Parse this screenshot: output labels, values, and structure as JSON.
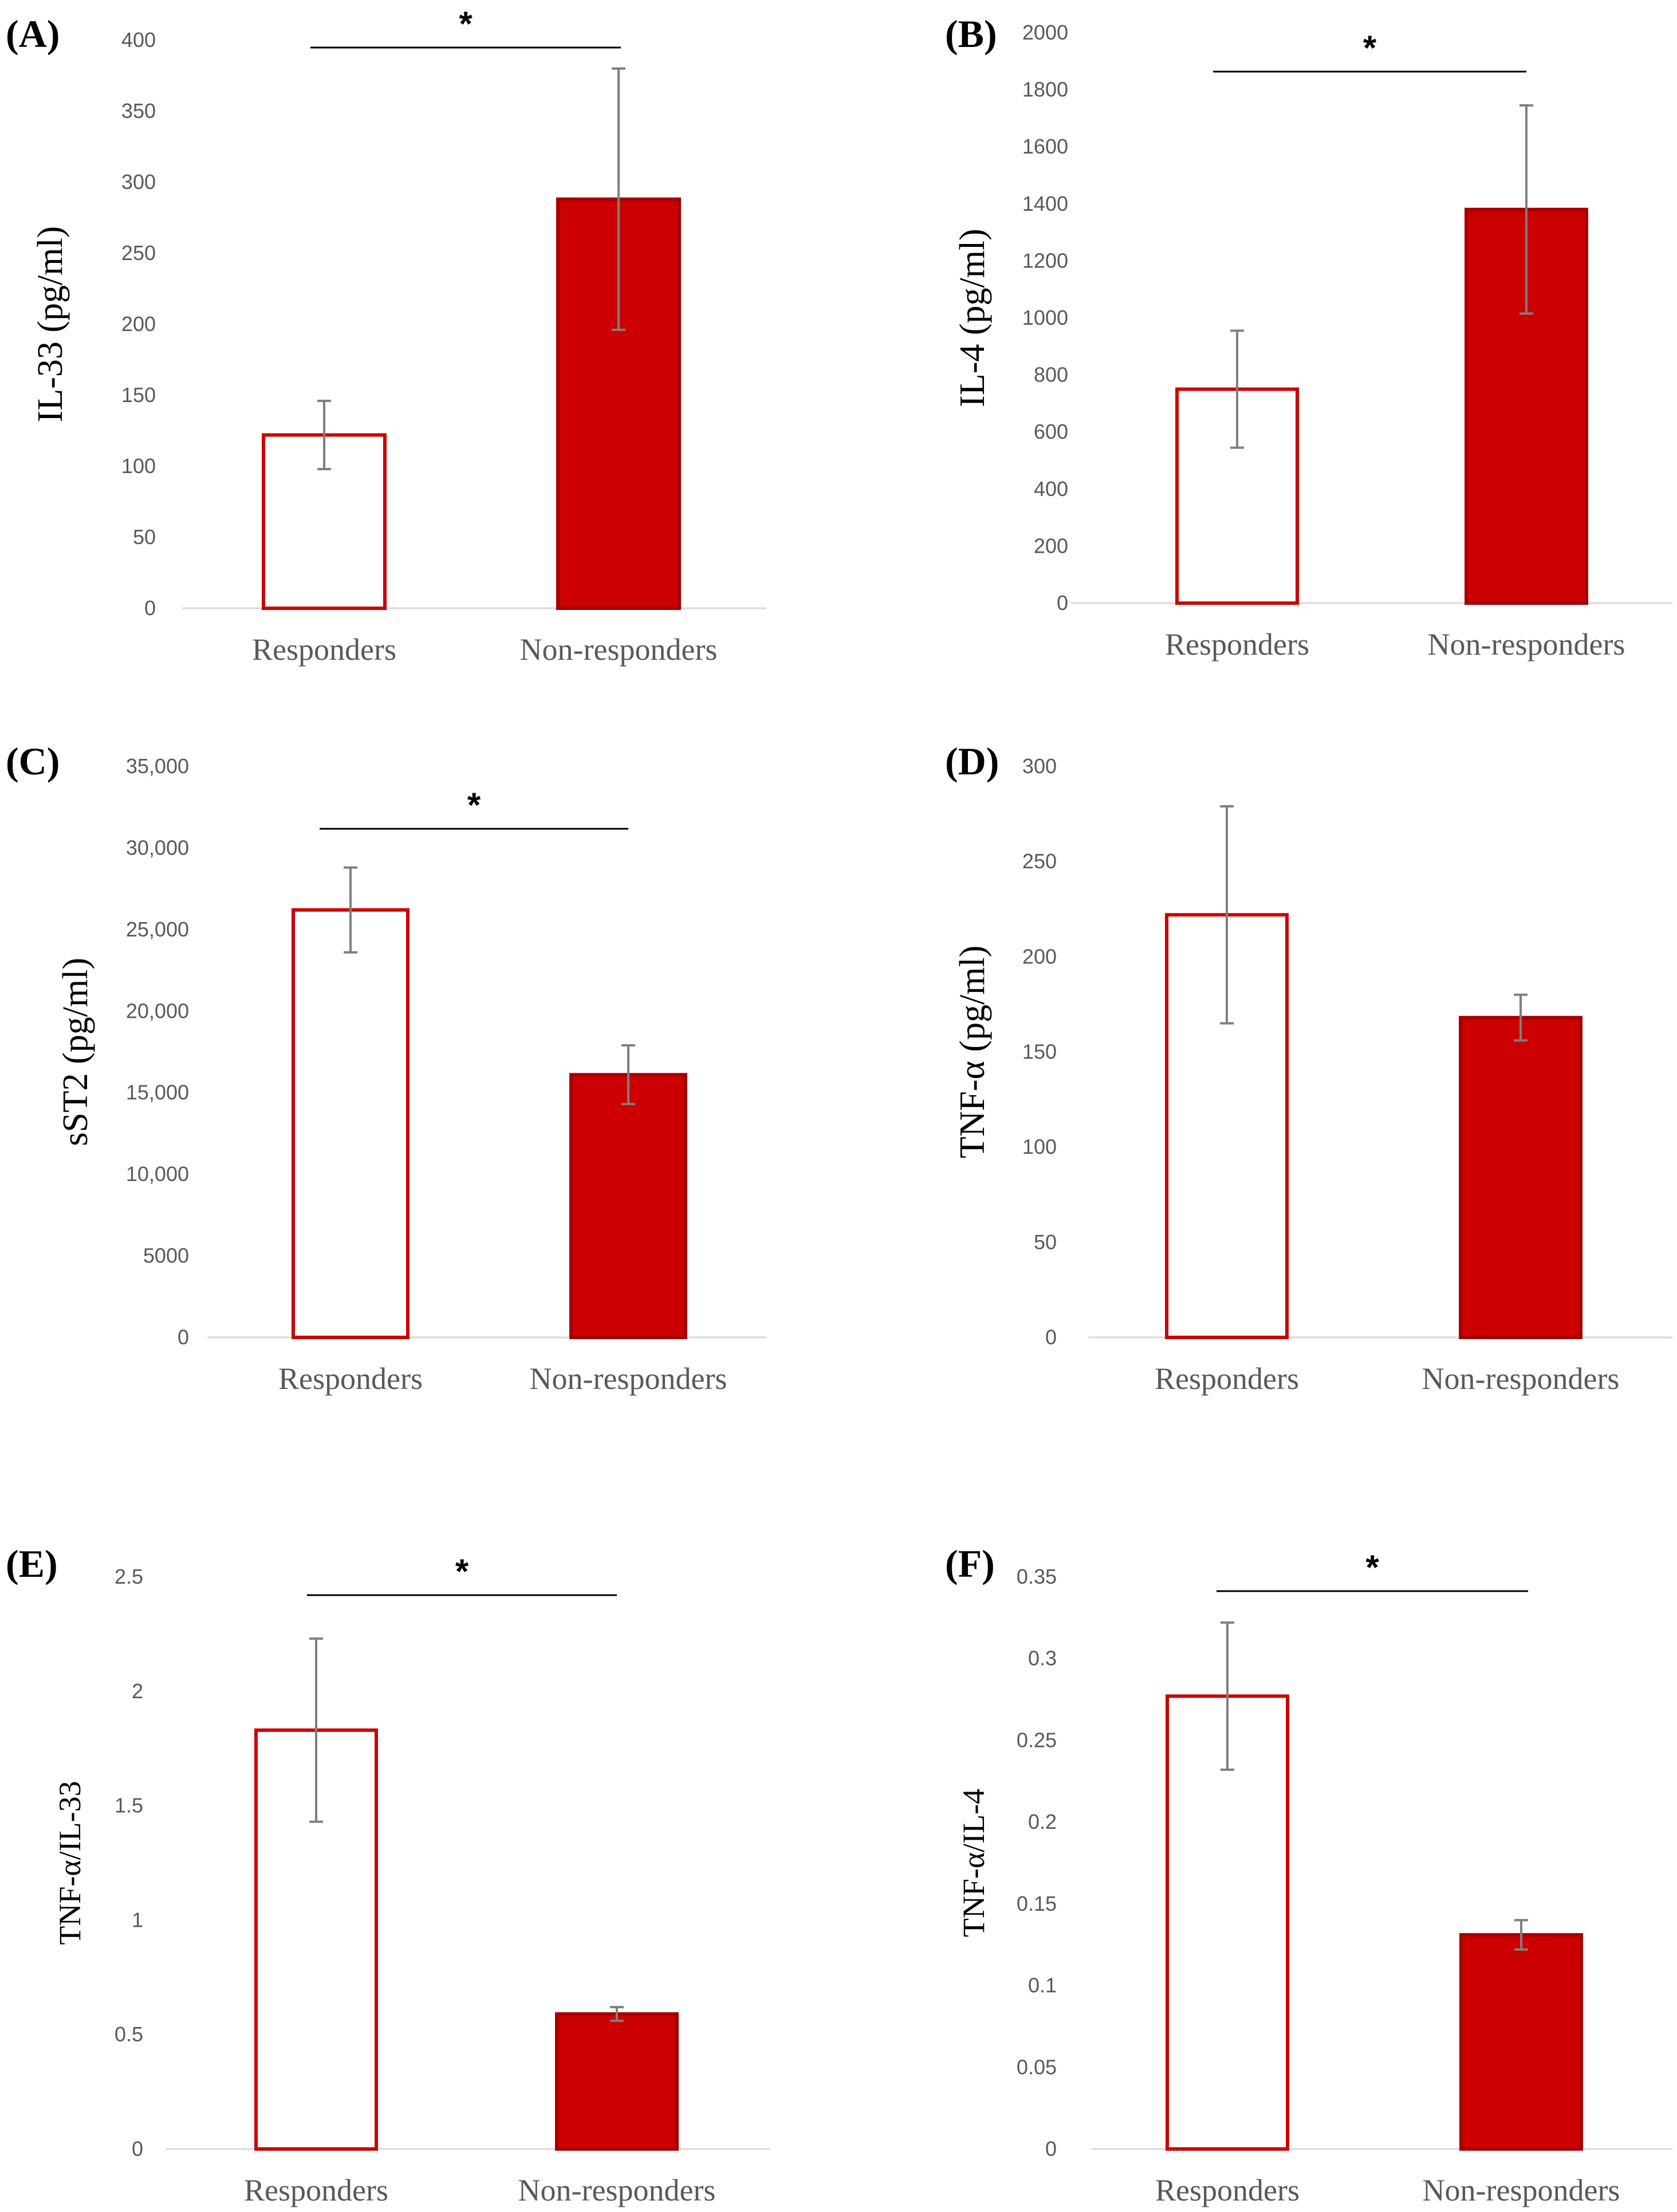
{
  "figure": {
    "style": {
      "bar_color": "#cc0000",
      "bar_edge": "#a50000",
      "hollow_fill": "#ffffff",
      "error_color": "#7f7f7f",
      "axis_color": "#d9d9d9",
      "sig_color": "#000000"
    }
  },
  "chart_data": [
    {
      "panel": "(A)",
      "type": "bar",
      "ylabel": "IL-33 (pg/ml)",
      "categories": [
        "Responders",
        "Non-responders"
      ],
      "values": [
        122,
        288
      ],
      "errors": [
        24,
        92
      ],
      "filled": [
        false,
        true
      ],
      "ylim": [
        0,
        400
      ],
      "yticks": [
        0,
        50,
        100,
        150,
        200,
        250,
        300,
        350,
        400
      ],
      "ytick_labels": [
        "0",
        "50",
        "100",
        "150",
        "200",
        "250",
        "300",
        "350",
        "400"
      ],
      "significance": "*"
    },
    {
      "panel": "(B)",
      "type": "bar",
      "ylabel": "IL-4 (pg/ml)",
      "categories": [
        "Responders",
        "Non-responders"
      ],
      "values": [
        750,
        1380
      ],
      "errors": [
        205,
        365
      ],
      "filled": [
        false,
        true
      ],
      "ylim": [
        0,
        2000
      ],
      "yticks": [
        0,
        200,
        400,
        600,
        800,
        1000,
        1200,
        1400,
        1600,
        1800,
        2000
      ],
      "ytick_labels": [
        "0",
        "200",
        "400",
        "600",
        "800",
        "1000",
        "1200",
        "1400",
        "1600",
        "1800",
        "2000"
      ],
      "significance": "*"
    },
    {
      "panel": "(C)",
      "type": "bar",
      "ylabel": "sST2 (pg/ml)",
      "categories": [
        "Responders",
        "Non-responders"
      ],
      "values": [
        26200,
        16100
      ],
      "errors": [
        2600,
        1800
      ],
      "filled": [
        false,
        true
      ],
      "ylim": [
        0,
        35000
      ],
      "yticks": [
        0,
        5000,
        10000,
        15000,
        20000,
        25000,
        30000,
        35000
      ],
      "ytick_labels": [
        "0",
        "5000",
        "10,000",
        "15,000",
        "20,000",
        "25,000",
        "30,000",
        "35,000"
      ],
      "significance": "*"
    },
    {
      "panel": "(D)",
      "type": "bar",
      "ylabel": "TNF-α (pg/ml)",
      "categories": [
        "Responders",
        "Non-responders"
      ],
      "values": [
        222,
        168
      ],
      "errors": [
        57,
        12
      ],
      "filled": [
        false,
        true
      ],
      "ylim": [
        0,
        300
      ],
      "yticks": [
        0,
        50,
        100,
        150,
        200,
        250,
        300
      ],
      "ytick_labels": [
        "0",
        "50",
        "100",
        "150",
        "200",
        "250",
        "300"
      ],
      "significance": ""
    },
    {
      "panel": "(E)",
      "type": "bar",
      "ylabel": "TNF-α/IL-33",
      "categories": [
        "Responders",
        "Non-responders"
      ],
      "values": [
        1.83,
        0.59
      ],
      "errors": [
        0.4,
        0.03
      ],
      "filled": [
        false,
        true
      ],
      "ylim": [
        0,
        2.5
      ],
      "yticks": [
        0,
        0.5,
        1,
        1.5,
        2,
        2.5
      ],
      "ytick_labels": [
        "0",
        "0.5",
        "1",
        "1.5",
        "2",
        "2.5"
      ],
      "significance": "*"
    },
    {
      "panel": "(F)",
      "type": "bar",
      "ylabel": "TNF-α/IL-4",
      "categories": [
        "Responders",
        "Non-responders"
      ],
      "values": [
        0.277,
        0.131
      ],
      "errors": [
        0.045,
        0.009
      ],
      "filled": [
        false,
        true
      ],
      "ylim": [
        0,
        0.35
      ],
      "yticks": [
        0,
        0.05,
        0.1,
        0.15,
        0.2,
        0.25,
        0.3,
        0.35
      ],
      "ytick_labels": [
        "0",
        "0.05",
        "0.1",
        "0.15",
        "0.2",
        "0.25",
        "0.3",
        "0.35"
      ],
      "significance": "*"
    }
  ]
}
